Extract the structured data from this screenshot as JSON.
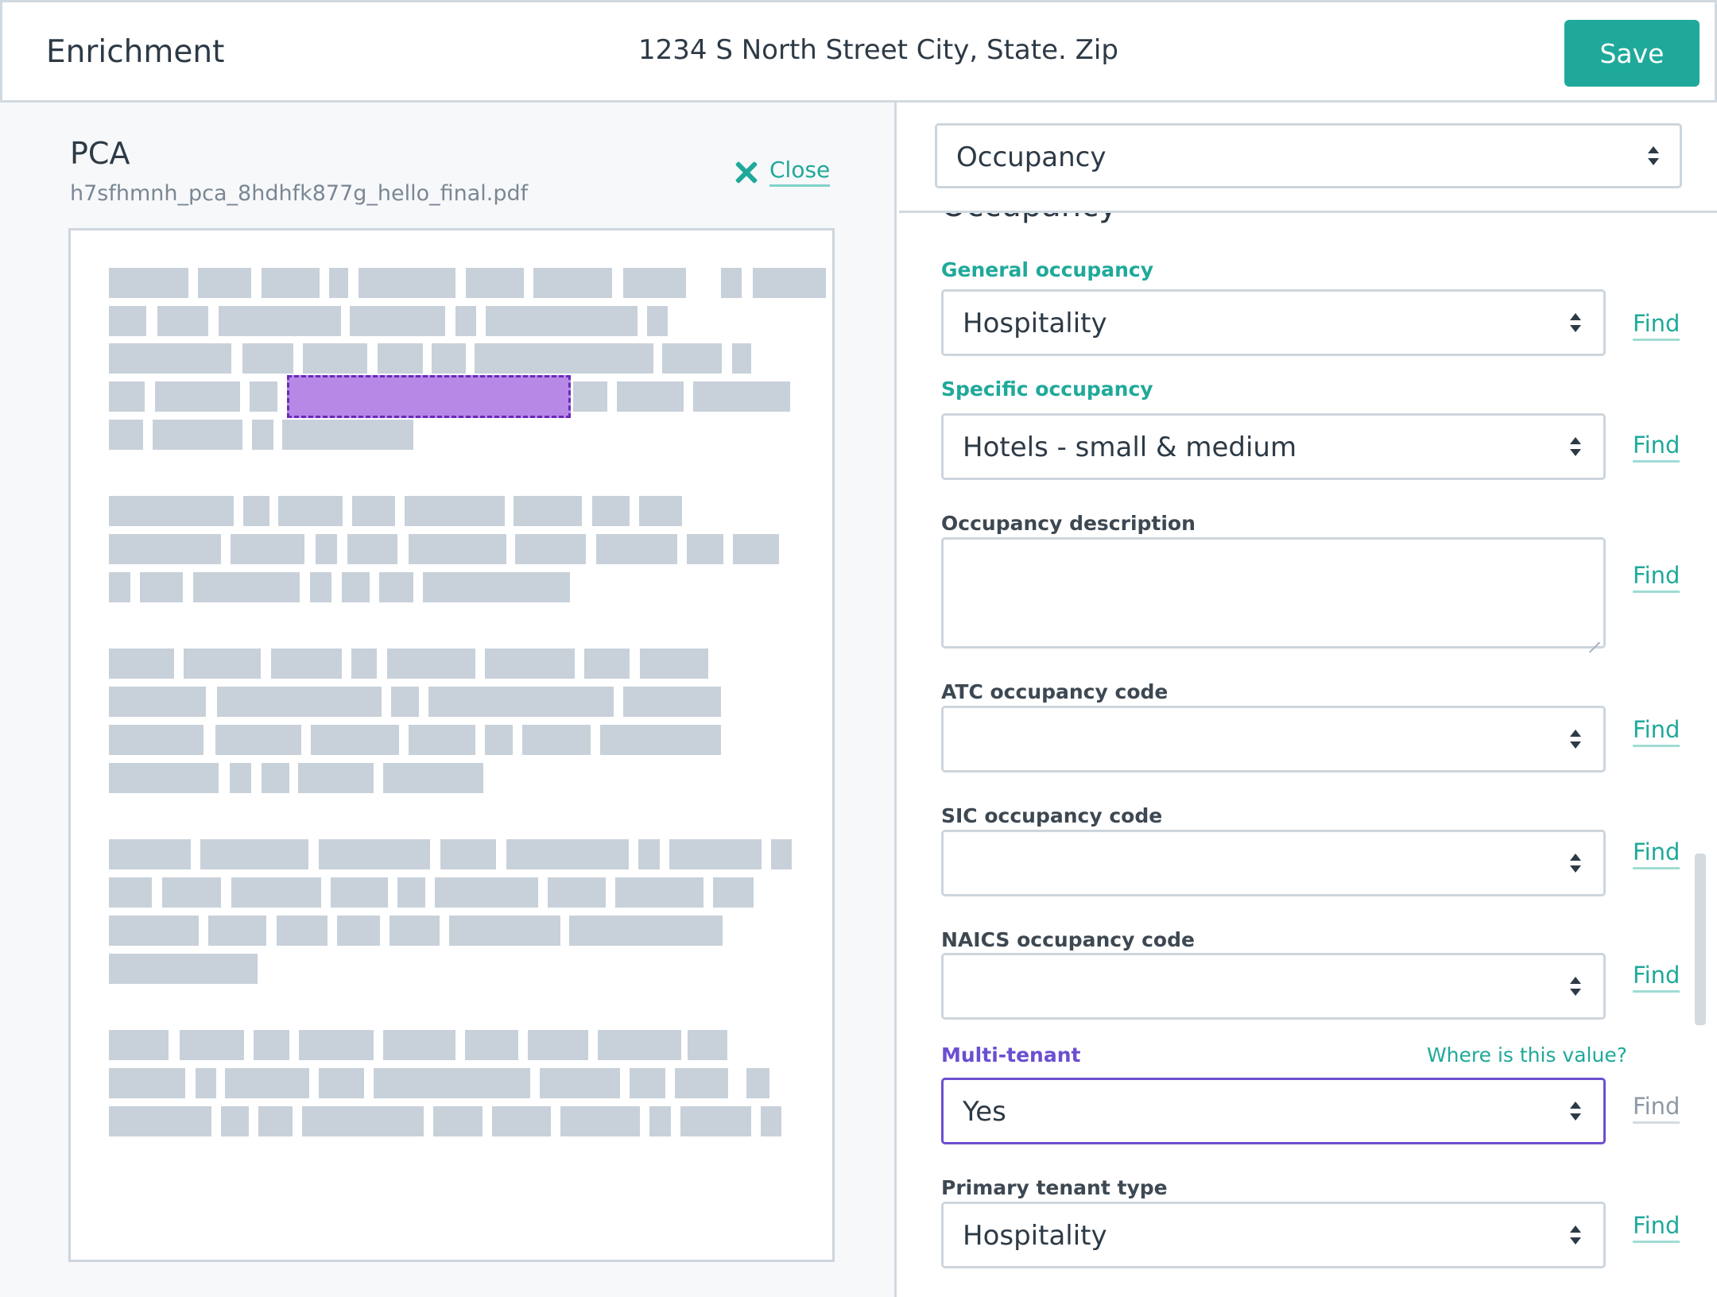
{
  "header": {
    "app_title": "Enrichment",
    "address": "1234 S North Street City, State. Zip",
    "save_label": "Save"
  },
  "document": {
    "title": "PCA",
    "filename": "h7sfhmnh_pca_8hdhfk877g_hello_final.pdf",
    "close_label": "Close"
  },
  "section_select": {
    "value": "Occupancy"
  },
  "form": {
    "section_heading": "Occupancy",
    "find_label": "Find",
    "fields": {
      "general_occupancy": {
        "label": "General occupancy",
        "value": "Hospitality"
      },
      "specific_occupancy": {
        "label": "Specific occupancy",
        "value": "Hotels - small & medium"
      },
      "occupancy_description": {
        "label": "Occupancy description",
        "value": ""
      },
      "atc_code": {
        "label": "ATC occupancy code",
        "value": ""
      },
      "sic_code": {
        "label": "SIC occupancy code",
        "value": ""
      },
      "naics_code": {
        "label": "NAICS occupancy code",
        "value": ""
      },
      "multi_tenant": {
        "label": "Multi-tenant",
        "value": "Yes",
        "hint": "Where is this value?"
      },
      "primary_tenant_type": {
        "label": "Primary tenant type",
        "value": "Hospitality"
      }
    }
  },
  "colors": {
    "accent": "#1fa99a",
    "active": "#6b4fd1",
    "highlight": "#b888e6",
    "placeholder_block": "#c8d1da"
  }
}
